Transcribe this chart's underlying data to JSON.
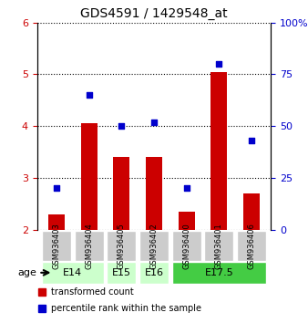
{
  "title": "GDS4591 / 1429548_at",
  "samples": [
    "GSM936403",
    "GSM936404",
    "GSM936405",
    "GSM936402",
    "GSM936400",
    "GSM936401",
    "GSM936406"
  ],
  "transformed_counts": [
    2.3,
    4.05,
    3.4,
    3.4,
    2.35,
    5.05,
    2.7
  ],
  "percentile_ranks": [
    20,
    65,
    50,
    52,
    20,
    80,
    43
  ],
  "bar_color": "#cc0000",
  "dot_color": "#0000cc",
  "ylim_left": [
    2,
    6
  ],
  "ylim_right": [
    0,
    100
  ],
  "yticks_left": [
    2,
    3,
    4,
    5,
    6
  ],
  "yticks_right": [
    0,
    25,
    50,
    75,
    100
  ],
  "age_groups": [
    {
      "label": "E14",
      "start": 0,
      "end": 2,
      "color": "#ccffcc"
    },
    {
      "label": "E15",
      "start": 2,
      "end": 3,
      "color": "#ccffcc"
    },
    {
      "label": "E16",
      "start": 3,
      "end": 4,
      "color": "#ccffcc"
    },
    {
      "label": "E17.5",
      "start": 4,
      "end": 7,
      "color": "#44cc44"
    }
  ],
  "legend_bar_label": "transformed count",
  "legend_dot_label": "percentile rank within the sample",
  "background_color": "#ffffff",
  "plot_bg_color": "#ffffff",
  "sample_box_color": "#cccccc"
}
